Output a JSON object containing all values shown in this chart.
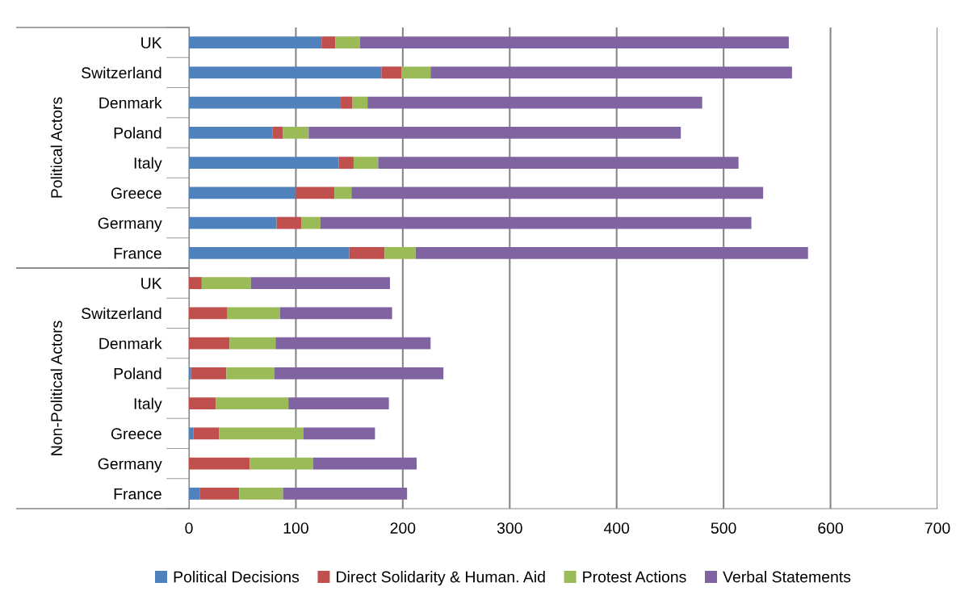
{
  "chart_data": {
    "type": "bar",
    "orientation": "horizontal",
    "stacked": true,
    "categories": [
      "UK",
      "Switzerland",
      "Denmark",
      "Poland",
      "Italy",
      "Greece",
      "Germany",
      "France",
      "UK",
      "Switzerland",
      "Denmark",
      "Poland",
      "Italy",
      "Greece",
      "Germany",
      "France"
    ],
    "series": [
      {
        "name": "Political Decisions",
        "color": "#4f81bd",
        "values": [
          124,
          180,
          142,
          78,
          140,
          100,
          82,
          150,
          0,
          null,
          null,
          2,
          null,
          4,
          0,
          10
        ]
      },
      {
        "name": "Direct Solidarity & Human. Aid",
        "color": "#c0504d",
        "values": [
          13,
          19,
          11,
          10,
          14,
          36,
          23,
          33,
          12,
          36,
          38,
          33,
          25,
          24,
          57,
          37
        ]
      },
      {
        "name": "Protest Actions",
        "color": "#9bbb59",
        "values": [
          23,
          27,
          14,
          24,
          23,
          16,
          18,
          29,
          46,
          49,
          43,
          45,
          68,
          79,
          59,
          41
        ]
      },
      {
        "name": "Verbal Statements",
        "color": "#8064a2",
        "values": [
          401,
          338,
          313,
          348,
          337,
          385,
          403,
          367,
          130,
          105,
          145,
          158,
          94,
          67,
          97,
          116
        ]
      }
    ],
    "annotations": [
      "Political Actors",
      "Non-Political Actors"
    ],
    "xlim": [
      0,
      700
    ],
    "xticks": [
      0,
      100,
      200,
      300,
      400,
      500,
      600,
      700
    ],
    "grid": "x",
    "legend": "bottom"
  }
}
